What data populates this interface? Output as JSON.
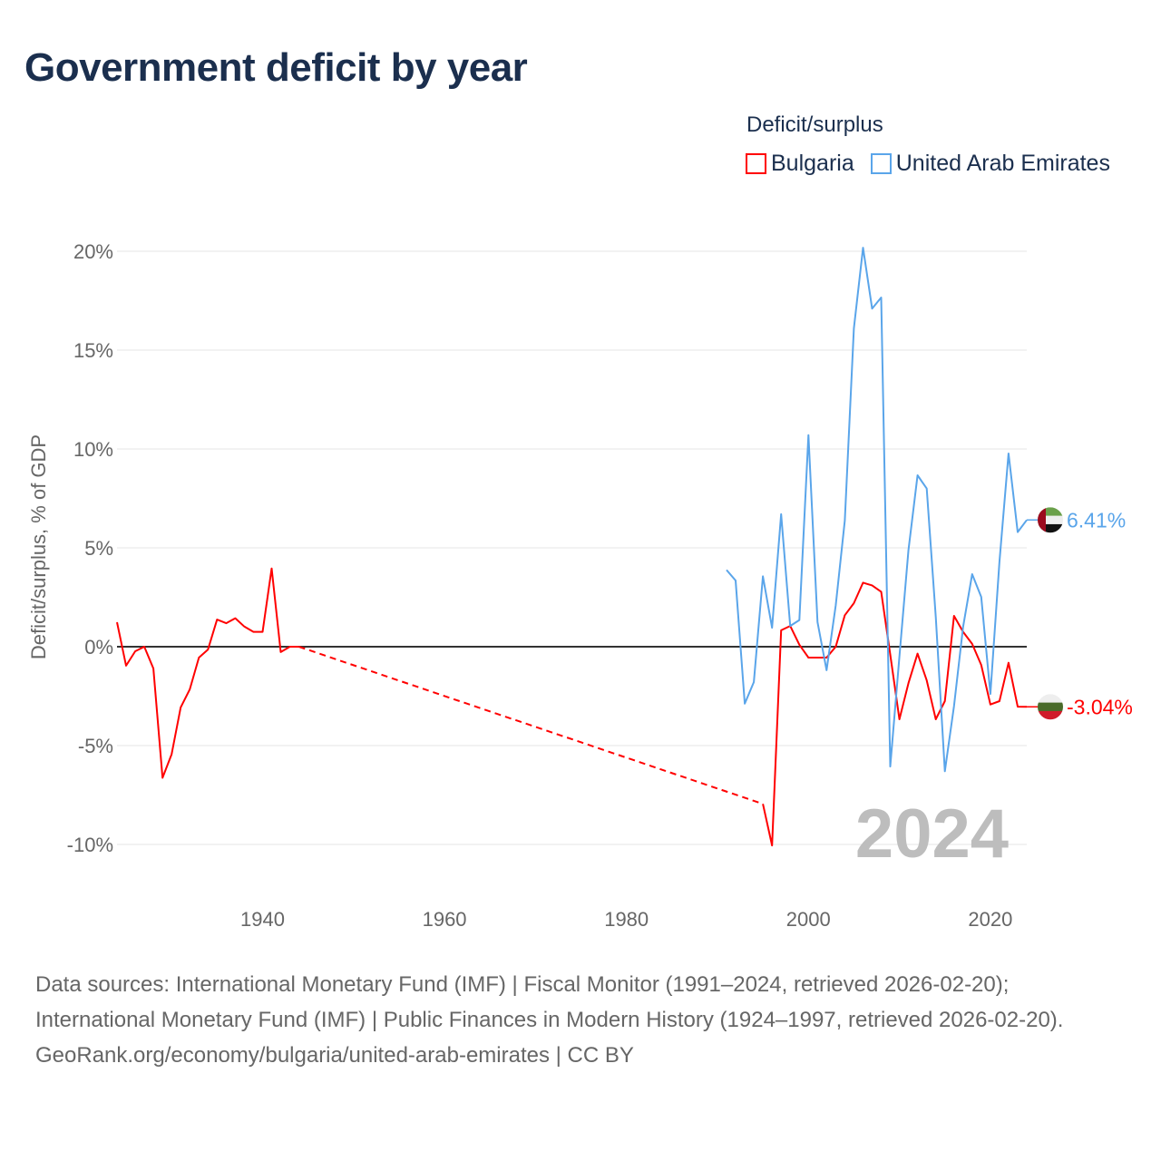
{
  "title": "Government deficit by year",
  "legend": {
    "title": "Deficit/surplus",
    "items": [
      "Bulgaria",
      "United Arab Emirates"
    ]
  },
  "footer": {
    "sources": "Data sources: International Monetary Fund (IMF) | Fiscal Monitor (1991–2024, retrieved 2026-02-20); International Monetary Fund (IMF) | Public Finances in Modern History (1924–1997, retrieved 2026-02-20).",
    "link": "GeoRank.org/economy/bulgaria/united-arab-emirates | CC BY"
  },
  "chart_data": {
    "type": "line",
    "title": "Government deficit by year",
    "xlabel": "",
    "ylabel": "Deficit/surplus, % of GDP",
    "xlim": [
      1924,
      2024
    ],
    "ylim": [
      -10,
      20
    ],
    "x_ticks": [
      "1940",
      "1960",
      "1980",
      "2000",
      "2020"
    ],
    "x_tick_values": [
      1940,
      1960,
      1980,
      2000,
      2020
    ],
    "y_ticks": [
      "-10%",
      "-5%",
      "0%",
      "5%",
      "10%",
      "15%",
      "20%"
    ],
    "y_tick_values": [
      -10,
      -5,
      0,
      5,
      10,
      15,
      20
    ],
    "year_label": "2024",
    "grid": true,
    "legend_position": "top-right",
    "series": [
      {
        "name": "Bulgaria",
        "color": "#ff0000",
        "end_label": "-3.04%",
        "points": [
          [
            1924,
            1.24
          ],
          [
            1925,
            -0.96
          ],
          [
            1926,
            -0.23
          ],
          [
            1927,
            0.0
          ],
          [
            1928,
            -1.1
          ],
          [
            1929,
            -6.63
          ],
          [
            1930,
            -5.44
          ],
          [
            1931,
            -3.07
          ],
          [
            1932,
            -2.16
          ],
          [
            1933,
            -0.55
          ],
          [
            1934,
            -0.14
          ],
          [
            1935,
            1.37
          ],
          [
            1936,
            1.19
          ],
          [
            1937,
            1.44
          ],
          [
            1938,
            1.02
          ],
          [
            1939,
            0.75
          ],
          [
            1940,
            0.75
          ],
          [
            1941,
            3.96
          ],
          [
            1942,
            -0.27
          ],
          [
            1943,
            0.0
          ],
          [
            1944,
            0.0
          ],
          [
            1995,
            -7.95
          ],
          [
            1996,
            -10.05
          ],
          [
            1997,
            0.83
          ],
          [
            1998,
            1.05
          ],
          [
            1999,
            0.1
          ],
          [
            2000,
            -0.55
          ],
          [
            2001,
            -0.55
          ],
          [
            2002,
            -0.55
          ],
          [
            2003,
            0.0
          ],
          [
            2004,
            1.59
          ],
          [
            2005,
            2.2
          ],
          [
            2006,
            3.24
          ],
          [
            2007,
            3.1
          ],
          [
            2008,
            2.78
          ],
          [
            2009,
            -0.4
          ],
          [
            2010,
            -3.67
          ],
          [
            2011,
            -1.84
          ],
          [
            2012,
            -0.35
          ],
          [
            2013,
            -1.7
          ],
          [
            2014,
            -3.67
          ],
          [
            2015,
            -2.75
          ],
          [
            2016,
            1.56
          ],
          [
            2017,
            0.75
          ],
          [
            2018,
            0.14
          ],
          [
            2019,
            -0.92
          ],
          [
            2020,
            -2.92
          ],
          [
            2021,
            -2.75
          ],
          [
            2022,
            -0.81
          ],
          [
            2023,
            -3.03
          ],
          [
            2024,
            -3.04
          ]
        ],
        "gap": [
          1944,
          1995
        ]
      },
      {
        "name": "United Arab Emirates",
        "color": "#5aa5ea",
        "end_label": "6.41%",
        "points": [
          [
            1991,
            3.88
          ],
          [
            1992,
            3.35
          ],
          [
            1993,
            -2.88
          ],
          [
            1994,
            -1.79
          ],
          [
            1995,
            3.56
          ],
          [
            1996,
            0.96
          ],
          [
            1997,
            6.7
          ],
          [
            1998,
            1.05
          ],
          [
            1999,
            1.35
          ],
          [
            2000,
            10.7
          ],
          [
            2001,
            1.25
          ],
          [
            2002,
            -1.19
          ],
          [
            2003,
            2.09
          ],
          [
            2004,
            6.38
          ],
          [
            2005,
            16.1
          ],
          [
            2006,
            20.18
          ],
          [
            2007,
            17.1
          ],
          [
            2008,
            17.66
          ],
          [
            2009,
            -6.06
          ],
          [
            2010,
            -0.5
          ],
          [
            2011,
            4.9
          ],
          [
            2012,
            8.67
          ],
          [
            2013,
            8.0
          ],
          [
            2014,
            1.5
          ],
          [
            2015,
            -6.3
          ],
          [
            2016,
            -3.0
          ],
          [
            2017,
            1.0
          ],
          [
            2018,
            3.67
          ],
          [
            2019,
            2.52
          ],
          [
            2020,
            -2.39
          ],
          [
            2021,
            4.3
          ],
          [
            2022,
            9.77
          ],
          [
            2023,
            5.8
          ],
          [
            2024,
            6.41
          ]
        ]
      }
    ]
  }
}
